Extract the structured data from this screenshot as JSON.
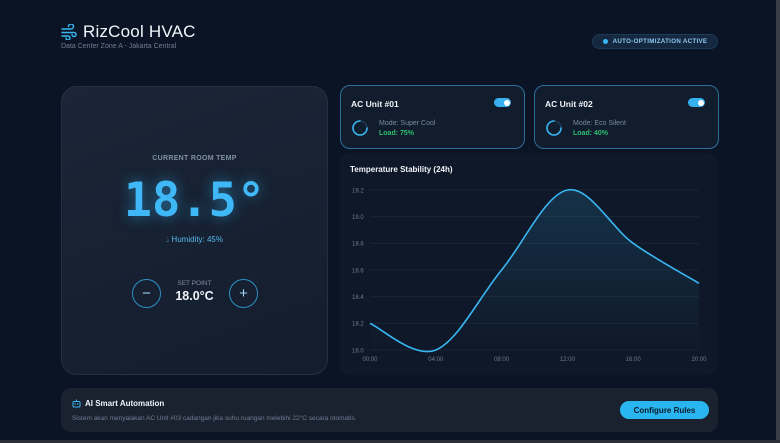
{
  "header": {
    "title": "RizCool HVAC",
    "subtitle": "Data Center Zone A - Jakarta Central",
    "status": "AUTO-OPTIMIZATION ACTIVE"
  },
  "temperature": {
    "label": "CURRENT ROOM TEMP",
    "value": "18.5°",
    "humidity": "Humidity: 45%",
    "setpoint_label": "SET POINT",
    "setpoint_value": "18.0°C",
    "minus": "−",
    "plus": "+"
  },
  "units": [
    {
      "name": "AC Unit #01",
      "mode": "Mode: Super Cool",
      "load": "Load: 75%",
      "enabled": true
    },
    {
      "name": "AC Unit #02",
      "mode": "Mode: Eco Silent",
      "load": "Load: 40%",
      "enabled": true
    }
  ],
  "chart": {
    "title": "Temperature Stability (24h)"
  },
  "chart_data": {
    "type": "line",
    "title": "Temperature Stability (24h)",
    "x": [
      "00:00",
      "04:00",
      "08:00",
      "12:00",
      "16:00",
      "20:00"
    ],
    "series": [
      {
        "values": [
          18.2,
          18.0,
          18.6,
          19.2,
          18.8,
          18.5
        ]
      }
    ],
    "ylim": [
      18.0,
      19.2
    ],
    "yticks": [
      "19.2",
      "19.0",
      "18.8",
      "18.6",
      "18.4",
      "18.2",
      "18.0"
    ],
    "grid": true
  },
  "automation": {
    "title": "AI Smart Automation",
    "description": "Sistem akan menyalakan AC Unit #03 cadangan jika suhu ruangan melebihi 22°C secara otomatis.",
    "button": "Configure Rules"
  },
  "colors": {
    "accent": "#38b6f2",
    "success": "#2fbf71",
    "background": "#0b1424"
  }
}
